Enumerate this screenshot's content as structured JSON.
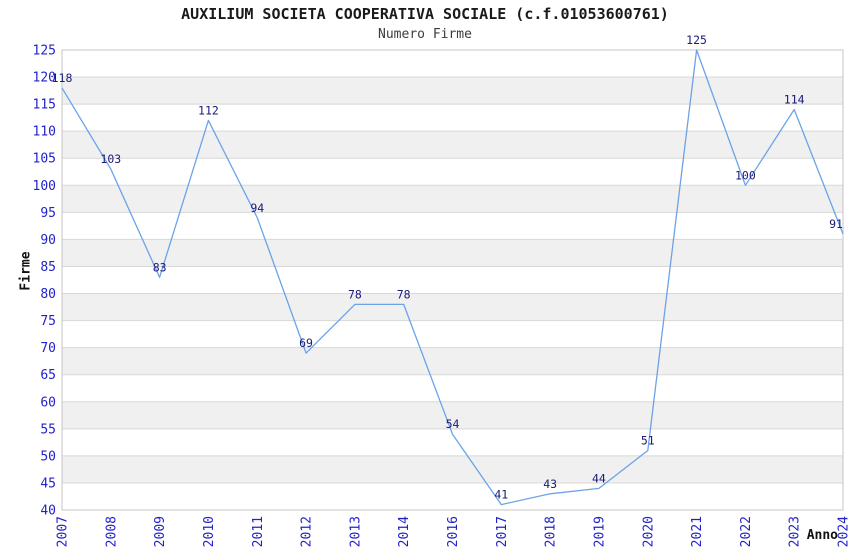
{
  "title": "AUXILIUM SOCIETA COOPERATIVA SOCIALE (c.f.01053600761)",
  "subtitle": "Numero Firme",
  "chart_data": {
    "type": "line",
    "x": [
      "2007",
      "2008",
      "2009",
      "2010",
      "2011",
      "2012",
      "2013",
      "2014",
      "2016",
      "2017",
      "2018",
      "2019",
      "2020",
      "2021",
      "2022",
      "2023",
      "2024"
    ],
    "values": [
      118,
      103,
      83,
      112,
      94,
      69,
      78,
      78,
      54,
      41,
      43,
      44,
      51,
      125,
      100,
      114,
      91
    ],
    "title": "AUXILIUM SOCIETA COOPERATIVA SOCIALE (c.f.01053600761)",
    "subtitle": "Numero Firme",
    "xlabel": "Anno",
    "ylabel": "Firme",
    "ylim": [
      40,
      125
    ],
    "ytick_step": 5,
    "yticks": [
      40,
      45,
      50,
      55,
      60,
      65,
      70,
      75,
      80,
      85,
      90,
      95,
      100,
      105,
      110,
      115,
      120,
      125
    ],
    "grid": true,
    "point_labels_shown": true,
    "legend": "none",
    "colors": {
      "line": "#6BA3E8",
      "tick_labels": "#2222CC",
      "point_labels": "#1A1A78",
      "band": "#F0F0F0",
      "grid": "#D8D8D8",
      "border": "#C4C4C4",
      "background": "#FFFFFF"
    }
  }
}
